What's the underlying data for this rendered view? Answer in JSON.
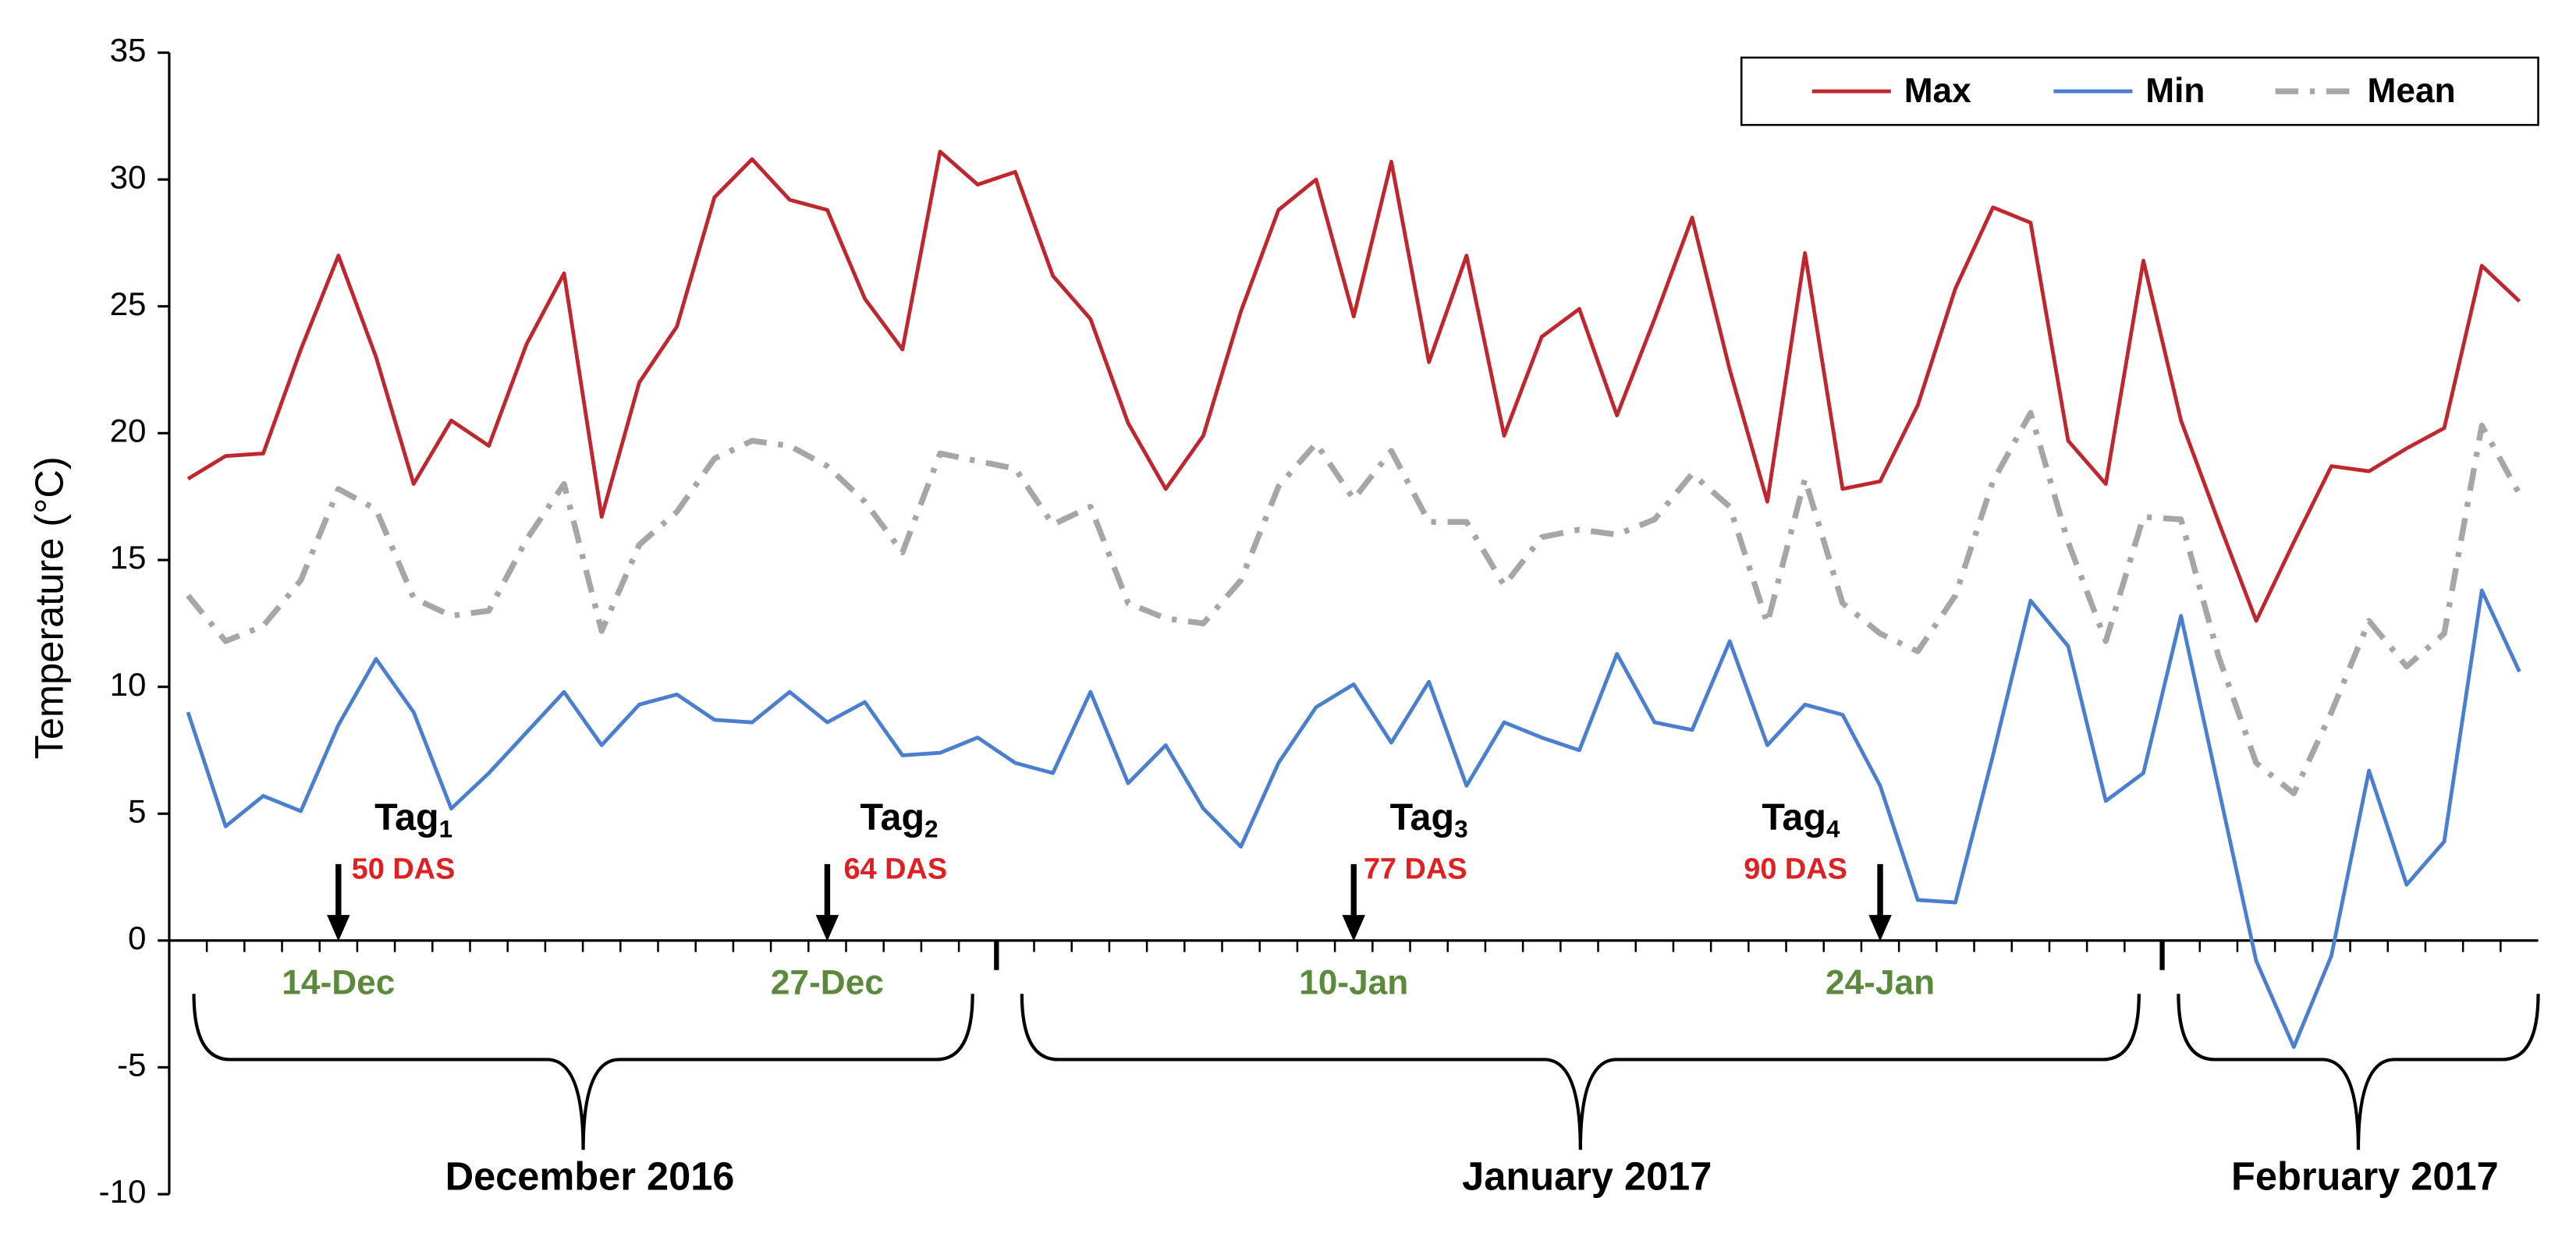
{
  "chart_data": {
    "type": "line",
    "y_label": "Temperature (°C)",
    "categories": [
      null,
      null,
      null,
      null,
      "14-Dec",
      null,
      null,
      null,
      null,
      null,
      null,
      null,
      null,
      null,
      null,
      null,
      null,
      "27-Dec",
      null,
      null,
      null,
      null,
      null,
      null,
      null,
      null,
      null,
      null,
      null,
      null,
      null,
      "10-Jan",
      null,
      null,
      null,
      null,
      null,
      null,
      null,
      null,
      null,
      null,
      null,
      null,
      null,
      "24-Jan",
      null,
      null,
      null,
      null,
      null,
      null,
      null,
      null,
      null,
      null,
      null,
      null,
      null,
      null,
      null,
      null,
      null
    ],
    "series": [
      {
        "name": "Max",
        "color": "#c0262d",
        "style": "solid",
        "values": [
          18.2,
          19.1,
          19.2,
          23.3,
          27.0,
          23.0,
          18.0,
          20.5,
          19.5,
          23.5,
          26.3,
          16.7,
          22.0,
          24.2,
          29.3,
          30.8,
          29.2,
          28.8,
          25.3,
          23.3,
          31.1,
          29.8,
          30.3,
          26.2,
          24.5,
          20.4,
          17.8,
          19.9,
          24.8,
          28.8,
          30.0,
          24.6,
          30.7,
          22.8,
          27.0,
          19.9,
          23.8,
          24.9,
          20.7,
          24.5,
          28.5,
          22.5,
          17.3,
          27.1,
          17.8,
          18.1,
          21.1,
          25.7,
          28.9,
          28.3,
          19.7,
          18.0,
          26.8,
          20.5,
          16.5,
          12.6,
          15.7,
          18.7,
          18.5,
          19.4,
          20.2,
          26.6,
          25.2
        ]
      },
      {
        "name": "Min",
        "color": "#4a7fd0",
        "style": "solid",
        "values": [
          9.0,
          4.5,
          5.7,
          5.1,
          8.5,
          11.1,
          9.0,
          5.2,
          6.6,
          8.2,
          9.8,
          7.7,
          9.3,
          9.7,
          8.7,
          8.6,
          9.8,
          8.6,
          9.4,
          7.3,
          7.4,
          8.0,
          7.0,
          6.6,
          9.8,
          6.2,
          7.7,
          5.2,
          3.7,
          7.0,
          9.2,
          10.1,
          7.8,
          10.2,
          6.1,
          8.6,
          8.0,
          7.5,
          11.3,
          8.6,
          8.3,
          11.8,
          7.7,
          9.3,
          8.9,
          6.1,
          1.6,
          1.5,
          7.3,
          13.4,
          11.6,
          5.5,
          6.6,
          12.8,
          6.0,
          -0.8,
          -4.2,
          -0.6,
          6.7,
          2.2,
          3.9,
          13.8,
          10.6
        ]
      },
      {
        "name": "Mean",
        "color": "#a6a6a6",
        "style": "dash-dot",
        "values": [
          13.6,
          11.8,
          12.4,
          14.2,
          17.8,
          17.0,
          13.5,
          12.8,
          13.0,
          15.8,
          18.0,
          12.2,
          15.6,
          16.9,
          19.0,
          19.7,
          19.5,
          18.7,
          17.3,
          15.3,
          19.2,
          18.9,
          18.6,
          16.4,
          17.1,
          13.3,
          12.7,
          12.5,
          14.2,
          17.9,
          19.6,
          17.4,
          19.3,
          16.5,
          16.5,
          14.0,
          15.9,
          16.2,
          16.0,
          16.6,
          18.4,
          17.1,
          12.5,
          18.2,
          13.3,
          12.1,
          11.4,
          13.6,
          18.1,
          20.8,
          15.7,
          11.8,
          16.7,
          16.6,
          11.2,
          7.0,
          5.8,
          9.0,
          12.6,
          10.8,
          12.1,
          20.3,
          17.6
        ]
      }
    ],
    "ylim": [
      -10,
      35
    ],
    "yticks": [
      -10,
      -5,
      0,
      5,
      10,
      15,
      20,
      25,
      30,
      35
    ],
    "legend": "top-right",
    "annotations": [
      {
        "label": "Tag",
        "subscript": "1",
        "note": "50 DAS",
        "date": "14-Dec"
      },
      {
        "label": "Tag",
        "subscript": "2",
        "note": "64 DAS",
        "date": "27-Dec"
      },
      {
        "label": "Tag",
        "subscript": "3",
        "note": "77 DAS",
        "date": "10-Jan"
      },
      {
        "label": "Tag",
        "subscript": "4",
        "note": "90 DAS",
        "date": "24-Jan"
      }
    ],
    "month_groups": [
      "December 2016",
      "January 2017",
      "February 2017"
    ]
  }
}
